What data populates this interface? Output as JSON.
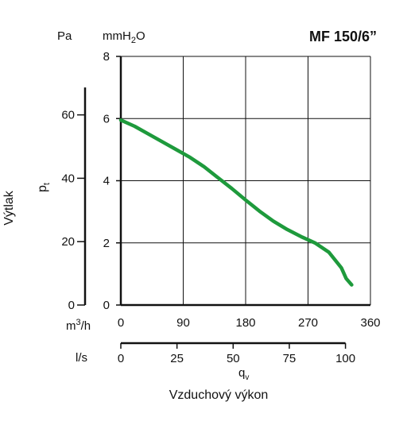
{
  "chart_data": {
    "type": "line",
    "title": "MF 150/6”",
    "ylabel": "Výtlak",
    "y_symbol": "p",
    "y_symbol_sub": "t",
    "y_unit_pa": "Pa",
    "y_unit_mmh2o_main": "mmH",
    "y_unit_mmh2o_sub": "2",
    "y_unit_mmh2o_end": "O",
    "xlabel": "Vzduchový výkon",
    "x_symbol": "q",
    "x_symbol_sub": "v",
    "x_unit_m3h_main": "m",
    "x_unit_m3h_sup": "3",
    "x_unit_m3h_end": "/h",
    "x_unit_ls": "l/s",
    "xlim_m3h": [
      0,
      360
    ],
    "ylim_mmh2o": [
      0,
      8
    ],
    "xticks_m3h": [
      "0",
      "90",
      "180",
      "270",
      "360"
    ],
    "xticks_ls": [
      "0",
      "25",
      "50",
      "75",
      "100"
    ],
    "yticks_mmh2o": [
      "0",
      "2",
      "4",
      "6",
      "8"
    ],
    "yticks_pa": [
      "0",
      "20",
      "40",
      "60"
    ],
    "grid": true,
    "series": [
      {
        "color": "#1e9a3c",
        "x": [
          0,
          20,
          40,
          60,
          80,
          100,
          120,
          140,
          160,
          180,
          200,
          220,
          240,
          260,
          280,
          300,
          318,
          325,
          333
        ],
        "y": [
          5.95,
          5.75,
          5.5,
          5.25,
          5.0,
          4.75,
          4.45,
          4.1,
          3.75,
          3.38,
          3.02,
          2.7,
          2.43,
          2.2,
          2.0,
          1.7,
          1.2,
          0.85,
          0.65
        ]
      }
    ]
  }
}
